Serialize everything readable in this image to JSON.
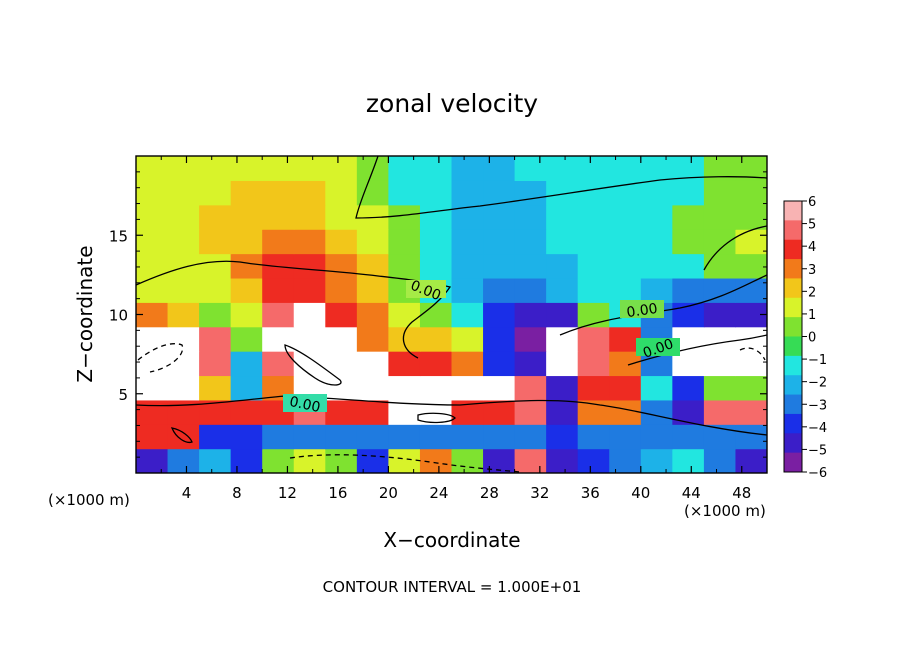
{
  "chart_data": {
    "type": "heatmap",
    "title": "zonal velocity",
    "xlabel": "X−coordinate",
    "ylabel": "Z−coordinate",
    "x_unit": "(×1000 m)",
    "z_unit": "(×1000 m)",
    "xlim": [
      0,
      50
    ],
    "ylim": [
      0,
      20
    ],
    "x_ticks": [
      "4",
      "8",
      "12",
      "16",
      "20",
      "24",
      "28",
      "32",
      "36",
      "40",
      "44",
      "48"
    ],
    "y_ticks": [
      "5",
      "10",
      "15"
    ],
    "colorbar": {
      "ticks": [
        "6",
        "5",
        "4",
        "3",
        "2",
        "1",
        "0",
        "−1",
        "−2",
        "−3",
        "−4",
        "−5",
        "−6"
      ],
      "range": [
        -6,
        6
      ],
      "colors": [
        "#7a1fa2",
        "#3b1ec8",
        "#1a2fe8",
        "#1f7be0",
        "#1db2e8",
        "#22e6e0",
        "#36dc55",
        "#7fe230",
        "#d8f32a",
        "#f2c61a",
        "#f27a1a",
        "#ee2b22",
        "#f56a6a",
        "#f8b3b3"
      ]
    },
    "contour_labels": [
      "0.00",
      "0.00",
      "0.00",
      "0.00"
    ],
    "contour_interval_text": "CONTOUR INTERVAL = 1.000E+01",
    "grid": false,
    "legend": "colorbar-right",
    "cells": [
      [
        -5,
        -3,
        -2,
        -4,
        0,
        1,
        0,
        -4,
        1,
        3,
        0,
        -5,
        5,
        -5,
        -4,
        -3,
        -2,
        -1,
        -3,
        -5
      ],
      [
        4,
        4,
        -4,
        -4,
        -3,
        -3,
        -3,
        -3,
        -3,
        -3,
        -3,
        -3,
        -3,
        -4,
        -3,
        -3,
        -3,
        -3,
        -3,
        -3
      ],
      [
        4,
        4,
        4,
        4,
        4,
        5,
        4,
        4,
        6,
        6,
        4,
        4,
        5,
        -5,
        3,
        3,
        -3,
        -5,
        5,
        5
      ],
      [
        6,
        6,
        2,
        -2,
        3,
        6,
        6,
        6,
        6,
        6,
        6,
        6,
        5,
        -5,
        4,
        4,
        -1,
        -4,
        0,
        0
      ],
      [
        6,
        6,
        5,
        -2,
        5,
        6,
        6,
        6,
        4,
        4,
        3,
        -4,
        -5,
        6,
        5,
        3,
        -3,
        6,
        6,
        6
      ],
      [
        6,
        6,
        5,
        0,
        6,
        6,
        6,
        3,
        2,
        2,
        1,
        -4,
        -6,
        6,
        5,
        4,
        -3,
        6,
        6,
        6
      ],
      [
        3,
        2,
        0,
        1,
        5,
        6,
        4,
        3,
        1,
        0,
        -1,
        -4,
        -5,
        -5,
        0,
        -1,
        -3,
        -4,
        -5,
        -5
      ],
      [
        1,
        1,
        1,
        2,
        4,
        4,
        3,
        2,
        0,
        -1,
        -2,
        -3,
        -3,
        -2,
        -1,
        -1,
        -2,
        -3,
        -3,
        -3
      ],
      [
        1,
        1,
        1,
        3,
        4,
        4,
        3,
        2,
        0,
        -1,
        -2,
        -2,
        -2,
        -2,
        -1,
        -1,
        -1,
        -1,
        0,
        0
      ],
      [
        1,
        1,
        2,
        2,
        3,
        3,
        2,
        1,
        0,
        -1,
        -2,
        -2,
        -2,
        -1,
        -1,
        -1,
        -1,
        0,
        0,
        1
      ],
      [
        1,
        1,
        2,
        2,
        2,
        2,
        1,
        1,
        0,
        -1,
        -2,
        -2,
        -2,
        -1,
        -1,
        -1,
        -1,
        0,
        0,
        0
      ],
      [
        1,
        1,
        1,
        2,
        2,
        2,
        1,
        0,
        -1,
        -1,
        -2,
        -2,
        -2,
        -1,
        -1,
        -1,
        -1,
        -1,
        0,
        0
      ],
      [
        1,
        1,
        1,
        1,
        1,
        1,
        1,
        0,
        -1,
        -1,
        -2,
        -2,
        -1,
        -1,
        -1,
        -1,
        -1,
        -1,
        0,
        0
      ]
    ]
  }
}
